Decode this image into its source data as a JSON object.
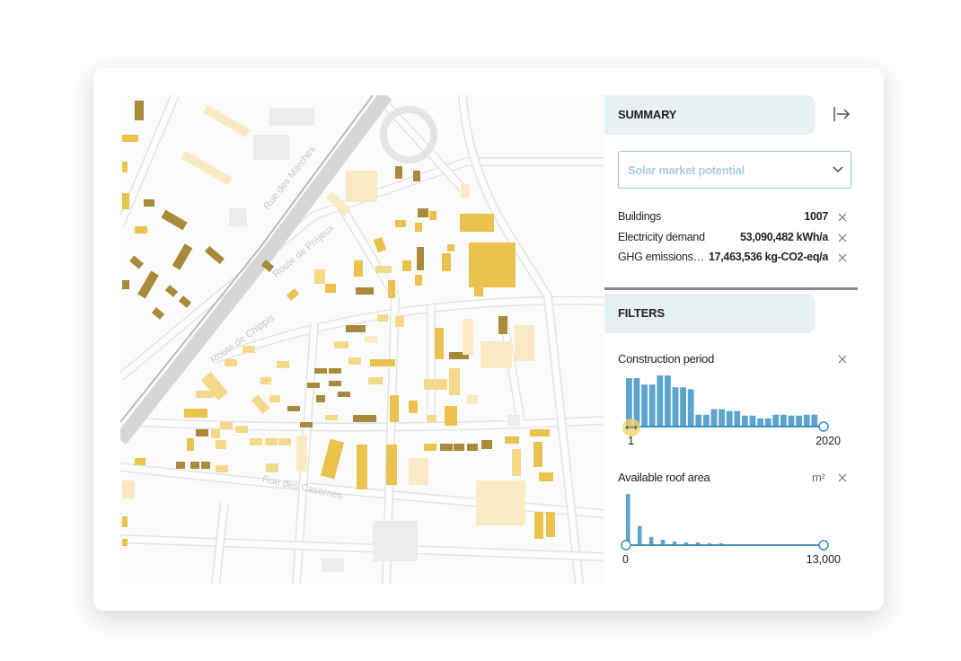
{
  "map": {
    "street_labels": [
      "Rue des Marches",
      "Route de Préjeux",
      "Route de Chippis",
      "Rue des Casernes"
    ]
  },
  "summary": {
    "title": "SUMMARY",
    "dropdown": "Solar market potential",
    "rows": [
      {
        "label": "Buildings",
        "value": "1007"
      },
      {
        "label": "Electricity demand",
        "value": "53,090,482 kWh/a"
      },
      {
        "label": "GHG emissions…",
        "value": "17,463,536 kg-CO2-eq/a"
      }
    ]
  },
  "filters": {
    "title": "FILTERS",
    "items": [
      {
        "label": "Construction period",
        "counts": [
          52,
          52,
          45,
          45,
          55,
          55,
          42,
          42,
          40,
          12,
          12,
          18,
          18,
          16,
          16,
          11,
          11,
          8,
          8,
          12,
          12,
          11,
          11,
          12,
          12
        ],
        "min_label": "1",
        "max_label": "2020"
      },
      {
        "label": "Available roof area",
        "unit": "m²",
        "counts": [
          55,
          20,
          8,
          5,
          3,
          2,
          2,
          1,
          1,
          0,
          0,
          0,
          0,
          0,
          0,
          0,
          0
        ],
        "min_label": "0",
        "max_label": "13,000"
      }
    ]
  }
}
